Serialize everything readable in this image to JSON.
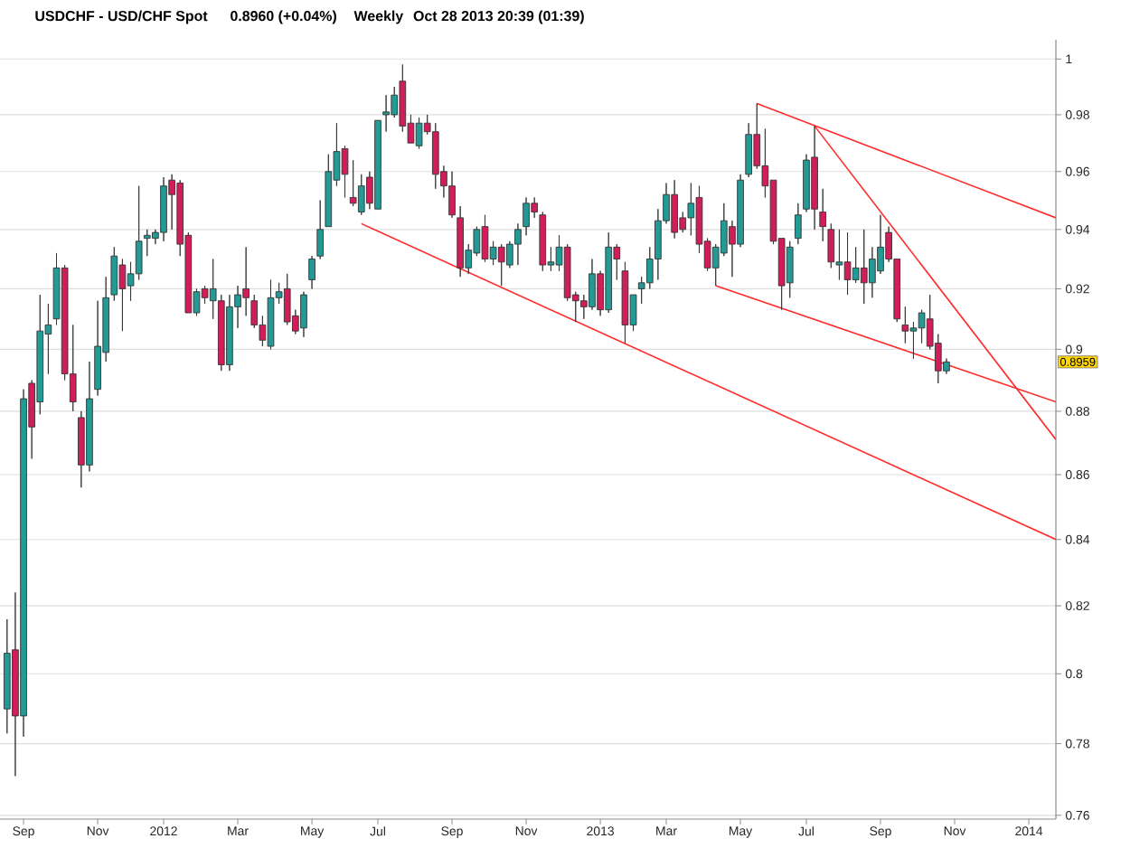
{
  "chart_data": {
    "type": "candlestick",
    "title": "USDCHF - USD/CHF Spot",
    "annotations": [
      "0.8960 (+0.04%)",
      "Weekly",
      "Oct 28 2013 20:39 (01:39)",
      {
        "text": "0.8959",
        "y": 0.8959
      }
    ],
    "x": [
      "2011-08-22",
      "2011-08-29",
      "2011-09-05",
      "2011-09-12",
      "2011-09-19",
      "2011-09-26",
      "2011-10-03",
      "2011-10-10",
      "2011-10-17",
      "2011-10-24",
      "2011-10-31",
      "2011-11-07",
      "2011-11-14",
      "2011-11-21",
      "2011-11-28",
      "2011-12-05",
      "2011-12-12",
      "2011-12-19",
      "2011-12-26",
      "2012-01-02",
      "2012-01-09",
      "2012-01-16",
      "2012-01-23",
      "2012-01-30",
      "2012-02-06",
      "2012-02-13",
      "2012-02-20",
      "2012-02-27",
      "2012-03-05",
      "2012-03-12",
      "2012-03-19",
      "2012-03-26",
      "2012-04-02",
      "2012-04-09",
      "2012-04-16",
      "2012-04-23",
      "2012-04-30",
      "2012-05-07",
      "2012-05-14",
      "2012-05-21",
      "2012-05-28",
      "2012-06-04",
      "2012-06-11",
      "2012-06-18",
      "2012-06-25",
      "2012-07-02",
      "2012-07-09",
      "2012-07-16",
      "2012-07-23",
      "2012-07-30",
      "2012-08-06",
      "2012-08-13",
      "2012-08-20",
      "2012-08-27",
      "2012-09-03",
      "2012-09-10",
      "2012-09-17",
      "2012-09-24",
      "2012-10-01",
      "2012-10-08",
      "2012-10-15",
      "2012-10-22",
      "2012-10-29",
      "2012-11-05",
      "2012-11-12",
      "2012-11-19",
      "2012-11-26",
      "2012-12-03",
      "2012-12-10",
      "2012-12-17",
      "2012-12-24",
      "2012-12-31",
      "2013-01-07",
      "2013-01-14",
      "2013-01-21",
      "2013-01-28",
      "2013-02-04",
      "2013-02-11",
      "2013-02-18",
      "2013-02-25",
      "2013-03-04",
      "2013-03-11",
      "2013-03-18",
      "2013-03-25",
      "2013-04-01",
      "2013-04-08",
      "2013-04-15",
      "2013-04-22",
      "2013-04-29",
      "2013-05-06",
      "2013-05-13",
      "2013-05-20",
      "2013-05-27",
      "2013-06-03",
      "2013-06-10",
      "2013-06-17",
      "2013-06-24",
      "2013-07-01",
      "2013-07-08",
      "2013-07-15",
      "2013-07-22",
      "2013-07-29",
      "2013-08-05",
      "2013-08-12",
      "2013-08-19",
      "2013-08-26",
      "2013-09-02",
      "2013-09-09",
      "2013-09-16",
      "2013-09-23",
      "2013-09-30",
      "2013-10-07",
      "2013-10-14",
      "2013-10-21",
      "2013-10-28"
    ],
    "ohlc": [
      [
        0.79,
        0.816,
        0.783,
        0.806
      ],
      [
        0.807,
        0.824,
        0.771,
        0.788
      ],
      [
        0.788,
        0.887,
        0.782,
        0.884
      ],
      [
        0.889,
        0.89,
        0.865,
        0.875
      ],
      [
        0.883,
        0.918,
        0.879,
        0.906
      ],
      [
        0.905,
        0.915,
        0.892,
        0.908
      ],
      [
        0.91,
        0.932,
        0.908,
        0.927
      ],
      [
        0.927,
        0.928,
        0.89,
        0.892
      ],
      [
        0.892,
        0.908,
        0.88,
        0.883
      ],
      [
        0.878,
        0.88,
        0.856,
        0.863
      ],
      [
        0.863,
        0.896,
        0.861,
        0.884
      ],
      [
        0.887,
        0.916,
        0.885,
        0.901
      ],
      [
        0.899,
        0.924,
        0.896,
        0.917
      ],
      [
        0.918,
        0.934,
        0.916,
        0.931
      ],
      [
        0.928,
        0.93,
        0.906,
        0.92
      ],
      [
        0.921,
        0.929,
        0.916,
        0.925
      ],
      [
        0.925,
        0.955,
        0.923,
        0.936
      ],
      [
        0.937,
        0.94,
        0.931,
        0.938
      ],
      [
        0.937,
        0.94,
        0.935,
        0.939
      ],
      [
        0.939,
        0.958,
        0.936,
        0.955
      ],
      [
        0.957,
        0.959,
        0.94,
        0.952
      ],
      [
        0.956,
        0.957,
        0.931,
        0.935
      ],
      [
        0.938,
        0.939,
        0.912,
        0.912
      ],
      [
        0.912,
        0.92,
        0.911,
        0.919
      ],
      [
        0.92,
        0.921,
        0.915,
        0.917
      ],
      [
        0.916,
        0.93,
        0.91,
        0.92
      ],
      [
        0.916,
        0.918,
        0.893,
        0.895
      ],
      [
        0.895,
        0.918,
        0.893,
        0.914
      ],
      [
        0.914,
        0.921,
        0.907,
        0.918
      ],
      [
        0.92,
        0.934,
        0.911,
        0.917
      ],
      [
        0.916,
        0.918,
        0.907,
        0.908
      ],
      [
        0.908,
        0.911,
        0.901,
        0.903
      ],
      [
        0.901,
        0.923,
        0.9,
        0.917
      ],
      [
        0.917,
        0.922,
        0.915,
        0.919
      ],
      [
        0.92,
        0.925,
        0.908,
        0.909
      ],
      [
        0.911,
        0.913,
        0.905,
        0.906
      ],
      [
        0.907,
        0.919,
        0.904,
        0.918
      ],
      [
        0.923,
        0.931,
        0.92,
        0.93
      ],
      [
        0.931,
        0.95,
        0.93,
        0.94
      ],
      [
        0.941,
        0.966,
        0.941,
        0.96
      ],
      [
        0.957,
        0.977,
        0.955,
        0.967
      ],
      [
        0.968,
        0.969,
        0.951,
        0.959
      ],
      [
        0.951,
        0.964,
        0.948,
        0.949
      ],
      [
        0.946,
        0.959,
        0.945,
        0.955
      ],
      [
        0.958,
        0.96,
        0.947,
        0.949
      ],
      [
        0.947,
        0.978,
        0.947,
        0.978
      ],
      [
        0.98,
        0.987,
        0.974,
        0.981
      ],
      [
        0.98,
        0.99,
        0.979,
        0.987
      ],
      [
        0.992,
        0.998,
        0.974,
        0.976
      ],
      [
        0.977,
        0.98,
        0.97,
        0.97
      ],
      [
        0.969,
        0.979,
        0.968,
        0.977
      ],
      [
        0.977,
        0.98,
        0.973,
        0.974
      ],
      [
        0.974,
        0.977,
        0.954,
        0.959
      ],
      [
        0.96,
        0.962,
        0.951,
        0.955
      ],
      [
        0.955,
        0.96,
        0.944,
        0.945
      ],
      [
        0.944,
        0.948,
        0.924,
        0.927
      ],
      [
        0.927,
        0.935,
        0.925,
        0.933
      ],
      [
        0.932,
        0.941,
        0.931,
        0.94
      ],
      [
        0.941,
        0.945,
        0.929,
        0.93
      ],
      [
        0.93,
        0.936,
        0.928,
        0.934
      ],
      [
        0.934,
        0.935,
        0.921,
        0.929
      ],
      [
        0.928,
        0.936,
        0.927,
        0.935
      ],
      [
        0.935,
        0.942,
        0.928,
        0.94
      ],
      [
        0.941,
        0.951,
        0.938,
        0.949
      ],
      [
        0.949,
        0.951,
        0.944,
        0.946
      ],
      [
        0.945,
        0.946,
        0.926,
        0.928
      ],
      [
        0.928,
        0.934,
        0.926,
        0.929
      ],
      [
        0.928,
        0.938,
        0.926,
        0.934
      ],
      [
        0.934,
        0.935,
        0.916,
        0.917
      ],
      [
        0.918,
        0.919,
        0.909,
        0.916
      ],
      [
        0.916,
        0.918,
        0.91,
        0.914
      ],
      [
        0.914,
        0.93,
        0.913,
        0.925
      ],
      [
        0.925,
        0.926,
        0.911,
        0.913
      ],
      [
        0.913,
        0.939,
        0.912,
        0.934
      ],
      [
        0.934,
        0.935,
        0.923,
        0.93
      ],
      [
        0.926,
        0.929,
        0.902,
        0.908
      ],
      [
        0.908,
        0.918,
        0.906,
        0.918
      ],
      [
        0.92,
        0.924,
        0.915,
        0.922
      ],
      [
        0.922,
        0.934,
        0.92,
        0.93
      ],
      [
        0.93,
        0.947,
        0.923,
        0.943
      ],
      [
        0.943,
        0.956,
        0.942,
        0.952
      ],
      [
        0.952,
        0.957,
        0.937,
        0.939
      ],
      [
        0.944,
        0.946,
        0.939,
        0.94
      ],
      [
        0.944,
        0.956,
        0.938,
        0.949
      ],
      [
        0.951,
        0.955,
        0.932,
        0.935
      ],
      [
        0.936,
        0.937,
        0.926,
        0.927
      ],
      [
        0.927,
        0.935,
        0.921,
        0.934
      ],
      [
        0.932,
        0.949,
        0.931,
        0.943
      ],
      [
        0.941,
        0.943,
        0.924,
        0.935
      ],
      [
        0.935,
        0.959,
        0.934,
        0.957
      ],
      [
        0.959,
        0.977,
        0.958,
        0.973
      ],
      [
        0.973,
        0.984,
        0.961,
        0.962
      ],
      [
        0.962,
        0.975,
        0.951,
        0.955
      ],
      [
        0.957,
        0.957,
        0.935,
        0.936
      ],
      [
        0.937,
        0.937,
        0.913,
        0.921
      ],
      [
        0.922,
        0.936,
        0.917,
        0.934
      ],
      [
        0.937,
        0.949,
        0.935,
        0.945
      ],
      [
        0.947,
        0.966,
        0.946,
        0.964
      ],
      [
        0.965,
        0.976,
        0.94,
        0.947
      ],
      [
        0.946,
        0.954,
        0.936,
        0.941
      ],
      [
        0.94,
        0.942,
        0.927,
        0.929
      ],
      [
        0.928,
        0.94,
        0.923,
        0.929
      ],
      [
        0.929,
        0.939,
        0.918,
        0.923
      ],
      [
        0.923,
        0.934,
        0.922,
        0.927
      ],
      [
        0.927,
        0.94,
        0.915,
        0.922
      ],
      [
        0.922,
        0.934,
        0.917,
        0.93
      ],
      [
        0.926,
        0.945,
        0.925,
        0.934
      ],
      [
        0.939,
        0.941,
        0.929,
        0.93
      ],
      [
        0.93,
        0.93,
        0.909,
        0.91
      ],
      [
        0.908,
        0.914,
        0.902,
        0.906
      ],
      [
        0.906,
        0.909,
        0.897,
        0.907
      ],
      [
        0.907,
        0.913,
        0.902,
        0.912
      ],
      [
        0.91,
        0.918,
        0.9,
        0.901
      ],
      [
        0.902,
        0.905,
        0.889,
        0.893
      ],
      [
        0.893,
        0.897,
        0.892,
        0.8959
      ]
    ],
    "colors": [
      "#239a96",
      "#d11d5a",
      "#239a96",
      "#d11d5a",
      "#239a96",
      "#239a96",
      "#239a96",
      "#d11d5a",
      "#d11d5a",
      "#d11d5a",
      "#239a96",
      "#239a96",
      "#239a96",
      "#239a96",
      "#d11d5a",
      "#239a96",
      "#239a96",
      "#239a96",
      "#239a96",
      "#239a96",
      "#d11d5a",
      "#d11d5a",
      "#d11d5a",
      "#239a96",
      "#d11d5a",
      "#239a96",
      "#d11d5a",
      "#239a96",
      "#239a96",
      "#d11d5a",
      "#d11d5a",
      "#d11d5a",
      "#239a96",
      "#239a96",
      "#d11d5a",
      "#d11d5a",
      "#239a96",
      "#239a96",
      "#239a96",
      "#239a96",
      "#239a96",
      "#d11d5a",
      "#d11d5a",
      "#239a96",
      "#d11d5a",
      "#239a96",
      "#239a96",
      "#239a96",
      "#d11d5a",
      "#d11d5a",
      "#239a96",
      "#d11d5a",
      "#d11d5a",
      "#d11d5a",
      "#d11d5a",
      "#d11d5a",
      "#239a96",
      "#239a96",
      "#d11d5a",
      "#239a96",
      "#d11d5a",
      "#239a96",
      "#239a96",
      "#239a96",
      "#d11d5a",
      "#d11d5a",
      "#239a96",
      "#239a96",
      "#d11d5a",
      "#d11d5a",
      "#d11d5a",
      "#239a96",
      "#d11d5a",
      "#239a96",
      "#d11d5a",
      "#d11d5a",
      "#239a96",
      "#239a96",
      "#239a96",
      "#239a96",
      "#239a96",
      "#d11d5a",
      "#d11d5a",
      "#239a96",
      "#d11d5a",
      "#d11d5a",
      "#239a96",
      "#239a96",
      "#d11d5a",
      "#239a96",
      "#239a96",
      "#d11d5a",
      "#d11d5a",
      "#d11d5a",
      "#d11d5a",
      "#239a96",
      "#239a96",
      "#239a96",
      "#d11d5a",
      "#d11d5a",
      "#d11d5a",
      "#239a96",
      "#d11d5a",
      "#239a96",
      "#d11d5a",
      "#239a96",
      "#239a96",
      "#d11d5a",
      "#d11d5a",
      "#d11d5a",
      "#239a96",
      "#239a96",
      "#d11d5a",
      "#d11d5a",
      "#239a96"
    ],
    "series": [
      {
        "type": "line",
        "color": "#ff2b2b",
        "x": [
          "2012-06-18",
          "2014-01-29"
        ],
        "values": [
          0.942,
          0.84
        ]
      },
      {
        "type": "line",
        "color": "#ff2b2b",
        "x": [
          "2013-04-15",
          "2014-01-29"
        ],
        "values": [
          0.921,
          0.883
        ]
      },
      {
        "type": "line",
        "color": "#ff2b2b",
        "x": [
          "2013-05-20",
          "2014-01-29"
        ],
        "values": [
          0.984,
          0.944
        ]
      },
      {
        "type": "line",
        "color": "#ff2b2b",
        "x": [
          "2013-07-08",
          "2014-01-29"
        ],
        "values": [
          0.976,
          0.871
        ]
      }
    ],
    "xlim": [
      "2011-08-16",
      "2014-01-29"
    ],
    "xticks": [
      {
        "value": "2011-09-05",
        "label": "Sep"
      },
      {
        "value": "2011-11-07",
        "label": "Nov"
      },
      {
        "value": "2012-01-02",
        "label": "2012"
      },
      {
        "value": "2012-03-05",
        "label": "Mar"
      },
      {
        "value": "2012-05-07",
        "label": "May"
      },
      {
        "value": "2012-07-02",
        "label": "Jul"
      },
      {
        "value": "2012-09-03",
        "label": "Sep"
      },
      {
        "value": "2012-11-05",
        "label": "Nov"
      },
      {
        "value": "2013-01-07",
        "label": "2013"
      },
      {
        "value": "2013-03-04",
        "label": "Mar"
      },
      {
        "value": "2013-05-06",
        "label": "May"
      },
      {
        "value": "2013-07-01",
        "label": "Jul"
      },
      {
        "value": "2013-09-02",
        "label": "Sep"
      },
      {
        "value": "2013-11-04",
        "label": "Nov"
      },
      {
        "value": "2014-01-06",
        "label": "2014"
      }
    ],
    "ylim": [
      0.759,
      1.007
    ],
    "yticks": [
      0.76,
      0.78,
      0.8,
      0.82,
      0.84,
      0.86,
      0.88,
      0.9,
      0.92,
      0.94,
      0.96,
      0.98,
      1
    ],
    "log": true,
    "grid": "y"
  }
}
